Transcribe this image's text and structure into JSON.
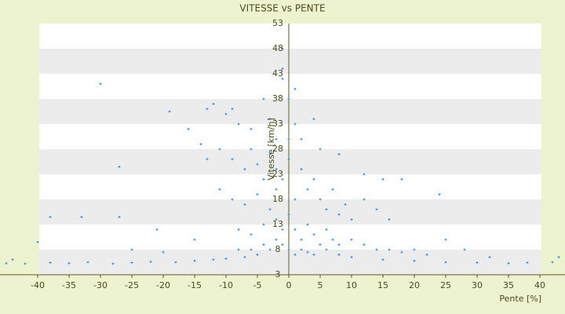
{
  "chart_data": {
    "type": "scatter",
    "title": "VITESSE vs PENTE",
    "x_label": "Pente [%]",
    "y_label": "Vitesse [km/h]",
    "series": [
      {
        "name": "Vitesse",
        "color": "#3a87d9",
        "x": [
          -45,
          -42,
          -38,
          -35,
          -32,
          -28,
          -25,
          -22,
          -18,
          -15,
          -12,
          -10,
          -7,
          -5,
          -3,
          10,
          15,
          20,
          25,
          30,
          35,
          38,
          42,
          43,
          -44,
          -40,
          -30,
          -19,
          -27,
          -38,
          -33,
          -27,
          -21,
          -25,
          -20,
          -15,
          -13,
          -12,
          -10,
          -9,
          -8,
          -6,
          -4,
          -3,
          -2,
          -1,
          -1,
          -1,
          0,
          1,
          -16,
          -14,
          -13,
          -11,
          -9,
          -7,
          -6,
          -5,
          -4,
          -3,
          -2,
          -11,
          -9,
          -7,
          -5,
          -3,
          -2,
          -1,
          0,
          1,
          2,
          3,
          4,
          5,
          6,
          7,
          8,
          9,
          10,
          12,
          14,
          16,
          -8,
          -6,
          -4,
          -2,
          -1,
          0,
          1,
          2,
          3,
          4,
          5,
          6,
          7,
          8,
          10,
          12,
          14,
          16,
          18,
          20,
          22,
          25,
          28,
          32,
          -1,
          0,
          1,
          2,
          3,
          4,
          6,
          8,
          -2,
          -4,
          -6,
          -8,
          2,
          5,
          8,
          15,
          18,
          24,
          12,
          4,
          1,
          0
        ],
        "values": [
          5.3,
          5.2,
          5.4,
          5.3,
          5.5,
          5.2,
          5.4,
          5.6,
          5.5,
          5.8,
          6,
          6.2,
          6.5,
          7,
          8,
          6.5,
          6,
          5.8,
          5.5,
          5.4,
          5.3,
          5.4,
          5.5,
          6.5,
          6,
          9.5,
          41,
          35.5,
          24.5,
          14.5,
          14.5,
          14.5,
          12,
          8,
          7.5,
          10,
          36,
          37,
          35,
          36,
          33,
          32,
          38,
          34,
          30,
          44,
          48,
          42,
          38,
          40,
          32,
          29,
          26,
          28,
          26,
          24,
          28,
          25,
          22,
          27,
          24,
          20,
          18,
          17,
          19,
          16,
          20,
          22,
          26,
          18,
          24,
          20,
          22,
          18,
          16,
          20,
          15,
          17,
          14,
          18,
          16,
          14,
          12,
          11,
          13,
          14,
          12,
          15,
          12,
          10,
          13,
          11,
          9,
          12,
          10,
          9,
          10,
          9,
          8,
          8,
          7.5,
          8,
          7,
          10,
          8,
          6.5,
          9,
          8,
          7,
          8,
          7.5,
          7,
          8,
          7,
          10,
          9,
          8,
          8,
          30,
          28,
          27,
          22,
          22,
          19,
          23,
          34,
          33,
          30
        ]
      }
    ],
    "xlim": [
      -46,
      44
    ],
    "ylim": [
      3,
      53
    ],
    "xticks": [
      -40,
      -35,
      -30,
      -25,
      -20,
      -15,
      -10,
      -5,
      0,
      5,
      10,
      15,
      20,
      25,
      30,
      35,
      40
    ],
    "yticks": [
      3,
      8,
      13,
      18,
      23,
      28,
      33,
      38,
      43,
      48,
      53
    ],
    "banded_grid": true
  }
}
